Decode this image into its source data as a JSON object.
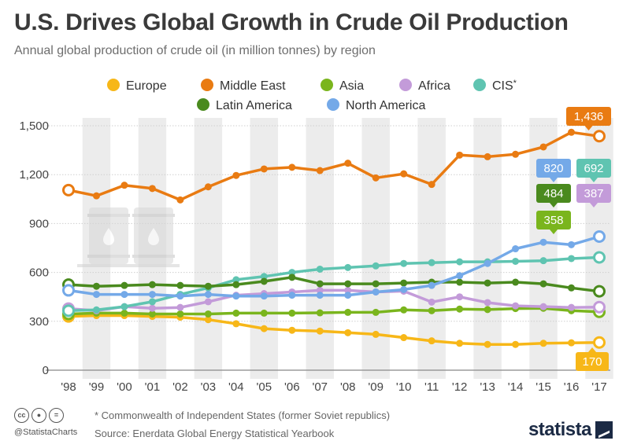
{
  "header": {
    "title": "U.S. Drives Global Growth in Crude Oil Production",
    "subtitle": "Annual global production of crude oil (in million tonnes) by region"
  },
  "footer": {
    "handle": "@StatistaCharts",
    "note": "* Commonwealth of Independent States (former Soviet republics)",
    "source": "Source: Enerdata Global Energy Statistical Yearbook",
    "brand": "statista",
    "license_icons": [
      "cc-icon",
      "attribution-icon",
      "no-derivatives-icon"
    ],
    "cc_label": "cc"
  },
  "chart_data": {
    "type": "line",
    "categories": [
      "'98",
      "'99",
      "'00",
      "'01",
      "'02",
      "'03",
      "'04",
      "'05",
      "'06",
      "'07",
      "'08",
      "'09",
      "'10",
      "'11",
      "'12",
      "'13",
      "'14",
      "'15",
      "'16",
      "'17"
    ],
    "ylim": [
      0,
      1500
    ],
    "yticks": [
      0,
      300,
      600,
      900,
      1200,
      1500
    ],
    "ytick_labels": [
      "0",
      "300",
      "600",
      "900",
      "1,200",
      "1,500"
    ],
    "grid": true,
    "legend_position": "top",
    "series": [
      {
        "name": "Europe",
        "color": "#f7b718",
        "values": [
          330,
          335,
          335,
          330,
          325,
          310,
          285,
          255,
          245,
          240,
          230,
          220,
          200,
          180,
          165,
          158,
          158,
          165,
          168,
          170
        ],
        "end_label": "170"
      },
      {
        "name": "Middle East",
        "color": "#e97b12",
        "values": [
          1105,
          1070,
          1135,
          1115,
          1045,
          1125,
          1195,
          1235,
          1245,
          1225,
          1270,
          1180,
          1205,
          1140,
          1320,
          1310,
          1325,
          1370,
          1460,
          1436
        ],
        "end_label": "1,436"
      },
      {
        "name": "Asia",
        "color": "#7ab51d",
        "values": [
          345,
          350,
          350,
          345,
          345,
          345,
          350,
          350,
          350,
          352,
          355,
          355,
          370,
          365,
          375,
          372,
          378,
          380,
          365,
          358
        ],
        "end_label": "358"
      },
      {
        "name": "Africa",
        "color": "#c39bd9",
        "values": [
          378,
          365,
          390,
          380,
          385,
          420,
          460,
          470,
          480,
          490,
          490,
          480,
          485,
          418,
          450,
          415,
          395,
          390,
          385,
          387
        ],
        "end_label": "387"
      },
      {
        "name": "CIS*",
        "color": "#5fc4b1",
        "values": [
          365,
          370,
          390,
          420,
          465,
          505,
          555,
          575,
          600,
          620,
          630,
          640,
          655,
          660,
          665,
          665,
          668,
          672,
          685,
          692
        ],
        "end_label": "692"
      },
      {
        "name": "Latin America",
        "color": "#4a8a1e",
        "values": [
          525,
          515,
          520,
          525,
          520,
          515,
          525,
          545,
          570,
          530,
          530,
          530,
          535,
          540,
          540,
          535,
          540,
          530,
          505,
          484
        ],
        "end_label": "484"
      },
      {
        "name": "North America",
        "color": "#74a9e8",
        "values": [
          490,
          465,
          465,
          465,
          455,
          465,
          455,
          455,
          460,
          460,
          460,
          480,
          495,
          520,
          580,
          655,
          745,
          785,
          770,
          820
        ],
        "end_label": "820"
      }
    ]
  }
}
